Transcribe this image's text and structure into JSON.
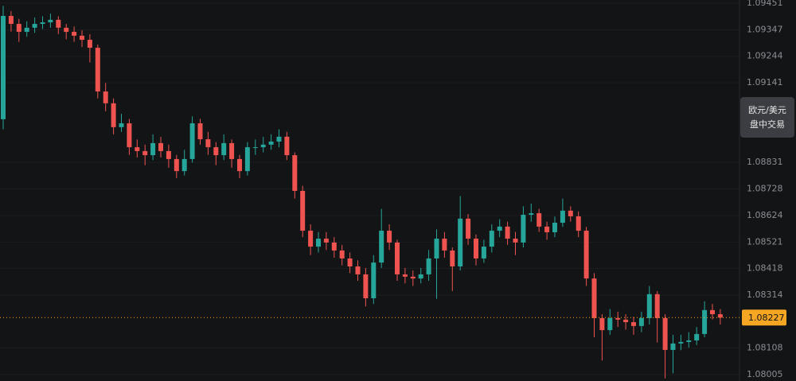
{
  "chart_data": {
    "type": "candlestick",
    "open": [
      1.08999,
      1.09401,
      1.0937,
      1.09339,
      1.09355,
      1.0937,
      1.09376,
      1.09386,
      1.09355,
      1.09339,
      1.09324,
      1.09308,
      1.09277,
      1.09107,
      1.09061,
      1.08968,
      1.08983,
      1.0889,
      1.08875,
      1.08859,
      1.08906,
      1.08875,
      1.08844,
      1.08797,
      1.08844,
      1.08983,
      1.08921,
      1.0889,
      1.08859,
      1.08906,
      1.08844,
      1.08797,
      1.0889,
      1.0889,
      1.089,
      1.08912,
      1.08931,
      1.08859,
      1.0872,
      1.08565,
      1.08503,
      1.08534,
      1.08519,
      1.08488,
      1.08457,
      1.08426,
      1.08395,
      1.08302,
      1.08441,
      1.08565,
      1.08519,
      1.08395,
      1.08386,
      1.08379,
      1.08395,
      1.08457,
      1.08534,
      1.08488,
      1.08426,
      1.08612,
      1.08534,
      1.08457,
      1.08503,
      1.08565,
      1.08581,
      1.08534,
      1.08519,
      1.08627,
      1.08633,
      1.08581,
      1.08559,
      1.08596,
      1.08643,
      1.08621,
      1.08565,
      1.08379,
      1.08225,
      1.08178,
      1.08225,
      1.08219,
      1.08209,
      1.08194,
      1.08225,
      1.08318,
      1.08225,
      1.08101,
      1.08126,
      1.08132,
      1.08138,
      1.08163,
      1.08256,
      1.0824
    ],
    "high": [
      1.0944,
      1.0942,
      1.0939,
      1.0938,
      1.09395,
      1.094,
      1.0941,
      1.094,
      1.0937,
      1.0936,
      1.09345,
      1.0933,
      1.0929,
      1.0914,
      1.0908,
      1.0902,
      1.09,
      1.0892,
      1.089,
      1.0894,
      1.0893,
      1.089,
      1.0886,
      1.0888,
      1.0901,
      1.09,
      1.0895,
      1.0891,
      1.0894,
      1.0892,
      1.0886,
      1.0891,
      1.0892,
      1.0893,
      1.0894,
      1.0896,
      1.0895,
      1.0887,
      1.0874,
      1.0859,
      1.0856,
      1.0856,
      1.0854,
      1.0851,
      1.0848,
      1.0845,
      1.0842,
      1.0847,
      1.0865,
      1.0859,
      1.0853,
      1.0842,
      1.0841,
      1.0842,
      1.0849,
      1.0857,
      1.0856,
      1.085,
      1.087,
      1.0863,
      1.0855,
      1.0853,
      1.0859,
      1.0861,
      1.086,
      1.0856,
      1.0866,
      1.0867,
      1.0865,
      1.086,
      1.0862,
      1.0869,
      1.0866,
      1.0864,
      1.0858,
      1.084,
      1.0824,
      1.0826,
      1.0825,
      1.0824,
      1.0823,
      1.0825,
      1.0835,
      1.0833,
      1.0824,
      1.0816,
      1.0816,
      1.0817,
      1.0819,
      1.0829,
      1.0828,
      1.0826
    ],
    "low": [
      1.0896,
      1.0934,
      1.093,
      1.0932,
      1.09335,
      1.0935,
      1.09355,
      1.0933,
      1.0931,
      1.093,
      1.0928,
      1.0922,
      1.0908,
      1.0903,
      1.0894,
      1.0895,
      1.0886,
      1.0885,
      1.0882,
      1.0884,
      1.0885,
      1.0881,
      1.0877,
      1.0878,
      1.0883,
      1.089,
      1.0886,
      1.0882,
      1.0884,
      1.0881,
      1.0877,
      1.0878,
      1.0886,
      1.0887,
      1.0888,
      1.0889,
      1.0884,
      1.0869,
      1.0854,
      1.0847,
      1.0848,
      1.0849,
      1.0846,
      1.0843,
      1.084,
      1.0837,
      1.0827,
      1.0828,
      1.0842,
      1.0849,
      1.0837,
      1.0836,
      1.0835,
      1.0836,
      1.0837,
      1.083,
      1.0846,
      1.0833,
      1.0841,
      1.0851,
      1.0843,
      1.0844,
      1.0848,
      1.0854,
      1.0851,
      1.0847,
      1.085,
      1.086,
      1.0856,
      1.0853,
      1.0854,
      1.0858,
      1.086,
      1.0854,
      1.0835,
      1.0815,
      1.0806,
      1.0816,
      1.0819,
      1.0818,
      1.0816,
      1.0817,
      1.082,
      1.0813,
      1.0799,
      1.0801,
      1.081,
      1.0811,
      1.0812,
      1.0815,
      1.0822,
      1.082
    ],
    "close": [
      1.09401,
      1.0937,
      1.09339,
      1.09355,
      1.0937,
      1.09376,
      1.09386,
      1.09355,
      1.09339,
      1.09324,
      1.09308,
      1.09277,
      1.09107,
      1.09061,
      1.08968,
      1.08983,
      1.0889,
      1.08875,
      1.08859,
      1.08906,
      1.08875,
      1.08844,
      1.08797,
      1.08844,
      1.08983,
      1.08921,
      1.0889,
      1.08859,
      1.08906,
      1.08844,
      1.08797,
      1.0889,
      1.0889,
      1.089,
      1.08912,
      1.08931,
      1.08859,
      1.0872,
      1.08565,
      1.08503,
      1.08534,
      1.08519,
      1.08488,
      1.08457,
      1.08426,
      1.08395,
      1.08302,
      1.08441,
      1.08565,
      1.08519,
      1.08395,
      1.08386,
      1.08379,
      1.08395,
      1.08457,
      1.08534,
      1.08488,
      1.08426,
      1.08612,
      1.08534,
      1.08457,
      1.08503,
      1.08565,
      1.08581,
      1.08534,
      1.08519,
      1.08627,
      1.08633,
      1.08581,
      1.08559,
      1.08596,
      1.08643,
      1.08621,
      1.08565,
      1.08379,
      1.08225,
      1.08178,
      1.08225,
      1.08219,
      1.08209,
      1.08194,
      1.08225,
      1.08318,
      1.08225,
      1.08101,
      1.08126,
      1.08132,
      1.08138,
      1.08163,
      1.08256,
      1.0824,
      1.08227
    ],
    "up_color": "#26a69a",
    "down_color": "#ef5350",
    "ylim": [
      1.0798,
      1.09463
    ],
    "yticks": [
      1.09451,
      1.09347,
      1.09244,
      1.09141,
      1.08831,
      1.08728,
      1.08624,
      1.08521,
      1.08418,
      1.08314,
      1.08108,
      1.08005
    ],
    "grid": true,
    "last_price": 1.08227,
    "last_price_color": "#f5a623",
    "tag": [
      "欧元/美元",
      "盘中交易"
    ]
  }
}
